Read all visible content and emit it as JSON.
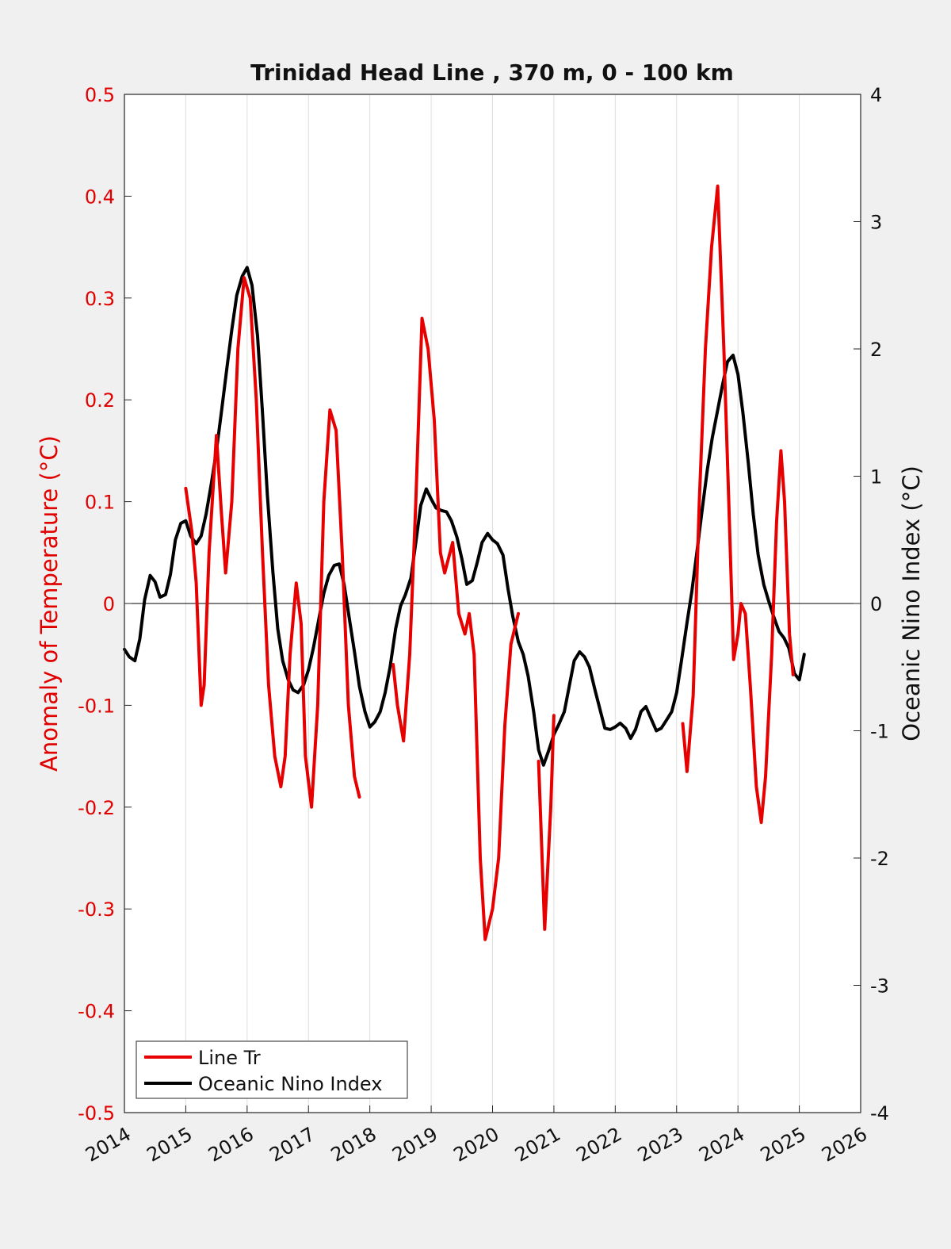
{
  "chart_data": {
    "type": "line",
    "title": "Trinidad Head Line , 370 m, 0 - 100 km",
    "ylabel_left": "Anomaly of Temperature (°C)",
    "ylabel_right": "Oceanic Nino Index (°C)",
    "xlim": [
      2014,
      2026
    ],
    "ylim_left": [
      -0.5,
      0.5
    ],
    "ylim_right": [
      -4,
      4
    ],
    "x_ticks": [
      "2014",
      "2015",
      "2016",
      "2017",
      "2018",
      "2019",
      "2020",
      "2021",
      "2022",
      "2023",
      "2024",
      "2025",
      "2026"
    ],
    "y_left_ticks": [
      "0.5",
      "0.4",
      "0.3",
      "0.2",
      "0.1",
      "0",
      "-0.1",
      "-0.2",
      "-0.3",
      "-0.4",
      "-0.5"
    ],
    "y_right_ticks": [
      "4",
      "3",
      "2",
      "1",
      "0",
      "-1",
      "-2",
      "-3",
      "-4"
    ],
    "grid": "vertical",
    "legend_position": "bottom-left",
    "colors": {
      "line_tr": "#e60000",
      "oni": "#000000"
    },
    "series": [
      {
        "name": "Line Tr",
        "axis": "left",
        "segments": [
          [
            [
              2015.0,
              0.113
            ],
            [
              2015.1,
              0.07
            ],
            [
              2015.17,
              0.02
            ],
            [
              2015.25,
              -0.1
            ],
            [
              2015.3,
              -0.08
            ],
            [
              2015.38,
              0.05
            ],
            [
              2015.5,
              0.165
            ],
            [
              2015.58,
              0.09
            ],
            [
              2015.65,
              0.03
            ],
            [
              2015.75,
              0.1
            ],
            [
              2015.85,
              0.25
            ],
            [
              2015.95,
              0.32
            ],
            [
              2016.05,
              0.3
            ],
            [
              2016.15,
              0.2
            ],
            [
              2016.25,
              0.05
            ],
            [
              2016.35,
              -0.08
            ],
            [
              2016.45,
              -0.15
            ],
            [
              2016.55,
              -0.18
            ],
            [
              2016.62,
              -0.15
            ],
            [
              2016.7,
              -0.05
            ],
            [
              2016.8,
              0.02
            ],
            [
              2016.88,
              -0.02
            ],
            [
              2016.95,
              -0.15
            ],
            [
              2017.05,
              -0.2
            ],
            [
              2017.15,
              -0.1
            ],
            [
              2017.25,
              0.1
            ],
            [
              2017.35,
              0.19
            ],
            [
              2017.45,
              0.17
            ],
            [
              2017.55,
              0.05
            ],
            [
              2017.65,
              -0.1
            ],
            [
              2017.75,
              -0.17
            ],
            [
              2017.83,
              -0.19
            ]
          ],
          [
            [
              2018.38,
              -0.06
            ],
            [
              2018.45,
              -0.1
            ],
            [
              2018.55,
              -0.135
            ],
            [
              2018.65,
              -0.05
            ],
            [
              2018.75,
              0.1
            ],
            [
              2018.85,
              0.28
            ],
            [
              2018.95,
              0.25
            ],
            [
              2019.05,
              0.18
            ],
            [
              2019.15,
              0.05
            ],
            [
              2019.22,
              0.03
            ],
            [
              2019.35,
              0.06
            ],
            [
              2019.45,
              -0.01
            ],
            [
              2019.55,
              -0.03
            ],
            [
              2019.62,
              -0.01
            ],
            [
              2019.7,
              -0.05
            ],
            [
              2019.8,
              -0.25
            ],
            [
              2019.88,
              -0.33
            ],
            [
              2020.0,
              -0.3
            ],
            [
              2020.1,
              -0.25
            ],
            [
              2020.2,
              -0.12
            ],
            [
              2020.3,
              -0.04
            ],
            [
              2020.42,
              -0.01
            ]
          ],
          [
            [
              2020.75,
              -0.155
            ],
            [
              2020.85,
              -0.32
            ],
            [
              2020.95,
              -0.2
            ],
            [
              2021.0,
              -0.11
            ]
          ],
          [
            [
              2023.1,
              -0.118
            ],
            [
              2023.17,
              -0.165
            ],
            [
              2023.27,
              -0.09
            ],
            [
              2023.37,
              0.1
            ],
            [
              2023.47,
              0.25
            ],
            [
              2023.57,
              0.35
            ],
            [
              2023.67,
              0.41
            ],
            [
              2023.77,
              0.25
            ],
            [
              2023.85,
              0.1
            ],
            [
              2023.93,
              -0.055
            ],
            [
              2024.0,
              -0.03
            ],
            [
              2024.05,
              0.0
            ],
            [
              2024.12,
              -0.01
            ],
            [
              2024.2,
              -0.08
            ],
            [
              2024.3,
              -0.18
            ],
            [
              2024.38,
              -0.215
            ],
            [
              2024.45,
              -0.17
            ],
            [
              2024.55,
              -0.05
            ],
            [
              2024.63,
              0.08
            ],
            [
              2024.7,
              0.15
            ],
            [
              2024.76,
              0.1
            ],
            [
              2024.84,
              -0.03
            ],
            [
              2024.9,
              -0.07
            ]
          ]
        ]
      },
      {
        "name": "Oceanic Nino Index",
        "axis": "right",
        "segments": [
          [
            [
              2014.0,
              -0.36
            ],
            [
              2014.08,
              -0.42
            ],
            [
              2014.17,
              -0.45
            ],
            [
              2014.25,
              -0.28
            ],
            [
              2014.33,
              0.03
            ],
            [
              2014.42,
              0.22
            ],
            [
              2014.5,
              0.17
            ],
            [
              2014.58,
              0.05
            ],
            [
              2014.67,
              0.07
            ],
            [
              2014.75,
              0.23
            ],
            [
              2014.83,
              0.5
            ],
            [
              2014.92,
              0.63
            ],
            [
              2015.0,
              0.65
            ],
            [
              2015.08,
              0.53
            ],
            [
              2015.17,
              0.47
            ],
            [
              2015.25,
              0.53
            ],
            [
              2015.33,
              0.7
            ],
            [
              2015.42,
              0.95
            ],
            [
              2015.5,
              1.2
            ],
            [
              2015.58,
              1.5
            ],
            [
              2015.67,
              1.85
            ],
            [
              2015.75,
              2.15
            ],
            [
              2015.83,
              2.42
            ],
            [
              2015.92,
              2.57
            ],
            [
              2016.0,
              2.64
            ],
            [
              2016.08,
              2.5
            ],
            [
              2016.17,
              2.1
            ],
            [
              2016.25,
              1.5
            ],
            [
              2016.33,
              0.85
            ],
            [
              2016.42,
              0.25
            ],
            [
              2016.5,
              -0.2
            ],
            [
              2016.58,
              -0.45
            ],
            [
              2016.67,
              -0.6
            ],
            [
              2016.75,
              -0.68
            ],
            [
              2016.83,
              -0.7
            ],
            [
              2016.92,
              -0.64
            ],
            [
              2017.0,
              -0.52
            ],
            [
              2017.08,
              -0.35
            ],
            [
              2017.17,
              -0.12
            ],
            [
              2017.25,
              0.08
            ],
            [
              2017.33,
              0.22
            ],
            [
              2017.42,
              0.3
            ],
            [
              2017.5,
              0.31
            ],
            [
              2017.58,
              0.15
            ],
            [
              2017.67,
              -0.13
            ],
            [
              2017.75,
              -0.38
            ],
            [
              2017.83,
              -0.65
            ],
            [
              2017.92,
              -0.85
            ],
            [
              2018.0,
              -0.97
            ],
            [
              2018.08,
              -0.93
            ],
            [
              2018.17,
              -0.85
            ],
            [
              2018.25,
              -0.7
            ],
            [
              2018.33,
              -0.5
            ],
            [
              2018.42,
              -0.2
            ],
            [
              2018.5,
              -0.02
            ],
            [
              2018.58,
              0.07
            ],
            [
              2018.67,
              0.2
            ],
            [
              2018.75,
              0.48
            ],
            [
              2018.83,
              0.77
            ],
            [
              2018.92,
              0.9
            ],
            [
              2019.0,
              0.82
            ],
            [
              2019.08,
              0.75
            ],
            [
              2019.17,
              0.73
            ],
            [
              2019.25,
              0.72
            ],
            [
              2019.33,
              0.65
            ],
            [
              2019.42,
              0.52
            ],
            [
              2019.5,
              0.35
            ],
            [
              2019.58,
              0.15
            ],
            [
              2019.67,
              0.18
            ],
            [
              2019.75,
              0.32
            ],
            [
              2019.83,
              0.48
            ],
            [
              2019.92,
              0.55
            ],
            [
              2020.0,
              0.5
            ],
            [
              2020.08,
              0.47
            ],
            [
              2020.17,
              0.38
            ],
            [
              2020.25,
              0.12
            ],
            [
              2020.33,
              -0.1
            ],
            [
              2020.42,
              -0.3
            ],
            [
              2020.5,
              -0.4
            ],
            [
              2020.58,
              -0.57
            ],
            [
              2020.67,
              -0.85
            ],
            [
              2020.75,
              -1.15
            ],
            [
              2020.83,
              -1.27
            ],
            [
              2020.92,
              -1.15
            ],
            [
              2021.0,
              -1.03
            ],
            [
              2021.08,
              -0.95
            ],
            [
              2021.17,
              -0.85
            ],
            [
              2021.25,
              -0.65
            ],
            [
              2021.33,
              -0.45
            ],
            [
              2021.42,
              -0.38
            ],
            [
              2021.5,
              -0.42
            ],
            [
              2021.58,
              -0.5
            ],
            [
              2021.67,
              -0.68
            ],
            [
              2021.75,
              -0.83
            ],
            [
              2021.83,
              -0.98
            ],
            [
              2021.92,
              -0.99
            ],
            [
              2022.0,
              -0.97
            ],
            [
              2022.08,
              -0.94
            ],
            [
              2022.17,
              -0.98
            ],
            [
              2022.25,
              -1.06
            ],
            [
              2022.33,
              -0.99
            ],
            [
              2022.42,
              -0.85
            ],
            [
              2022.5,
              -0.81
            ],
            [
              2022.58,
              -0.9
            ],
            [
              2022.67,
              -1.0
            ],
            [
              2022.75,
              -0.98
            ],
            [
              2022.83,
              -0.92
            ],
            [
              2022.92,
              -0.85
            ],
            [
              2023.0,
              -0.7
            ],
            [
              2023.08,
              -0.45
            ],
            [
              2023.17,
              -0.15
            ],
            [
              2023.25,
              0.1
            ],
            [
              2023.33,
              0.4
            ],
            [
              2023.42,
              0.75
            ],
            [
              2023.5,
              1.05
            ],
            [
              2023.58,
              1.3
            ],
            [
              2023.67,
              1.52
            ],
            [
              2023.75,
              1.72
            ],
            [
              2023.83,
              1.9
            ],
            [
              2023.92,
              1.95
            ],
            [
              2024.0,
              1.8
            ],
            [
              2024.08,
              1.5
            ],
            [
              2024.17,
              1.1
            ],
            [
              2024.25,
              0.7
            ],
            [
              2024.33,
              0.38
            ],
            [
              2024.42,
              0.15
            ],
            [
              2024.5,
              0.02
            ],
            [
              2024.58,
              -0.1
            ],
            [
              2024.67,
              -0.22
            ],
            [
              2024.75,
              -0.27
            ],
            [
              2024.83,
              -0.35
            ],
            [
              2024.92,
              -0.55
            ],
            [
              2025.0,
              -0.6
            ],
            [
              2025.08,
              -0.4
            ]
          ]
        ]
      }
    ]
  }
}
